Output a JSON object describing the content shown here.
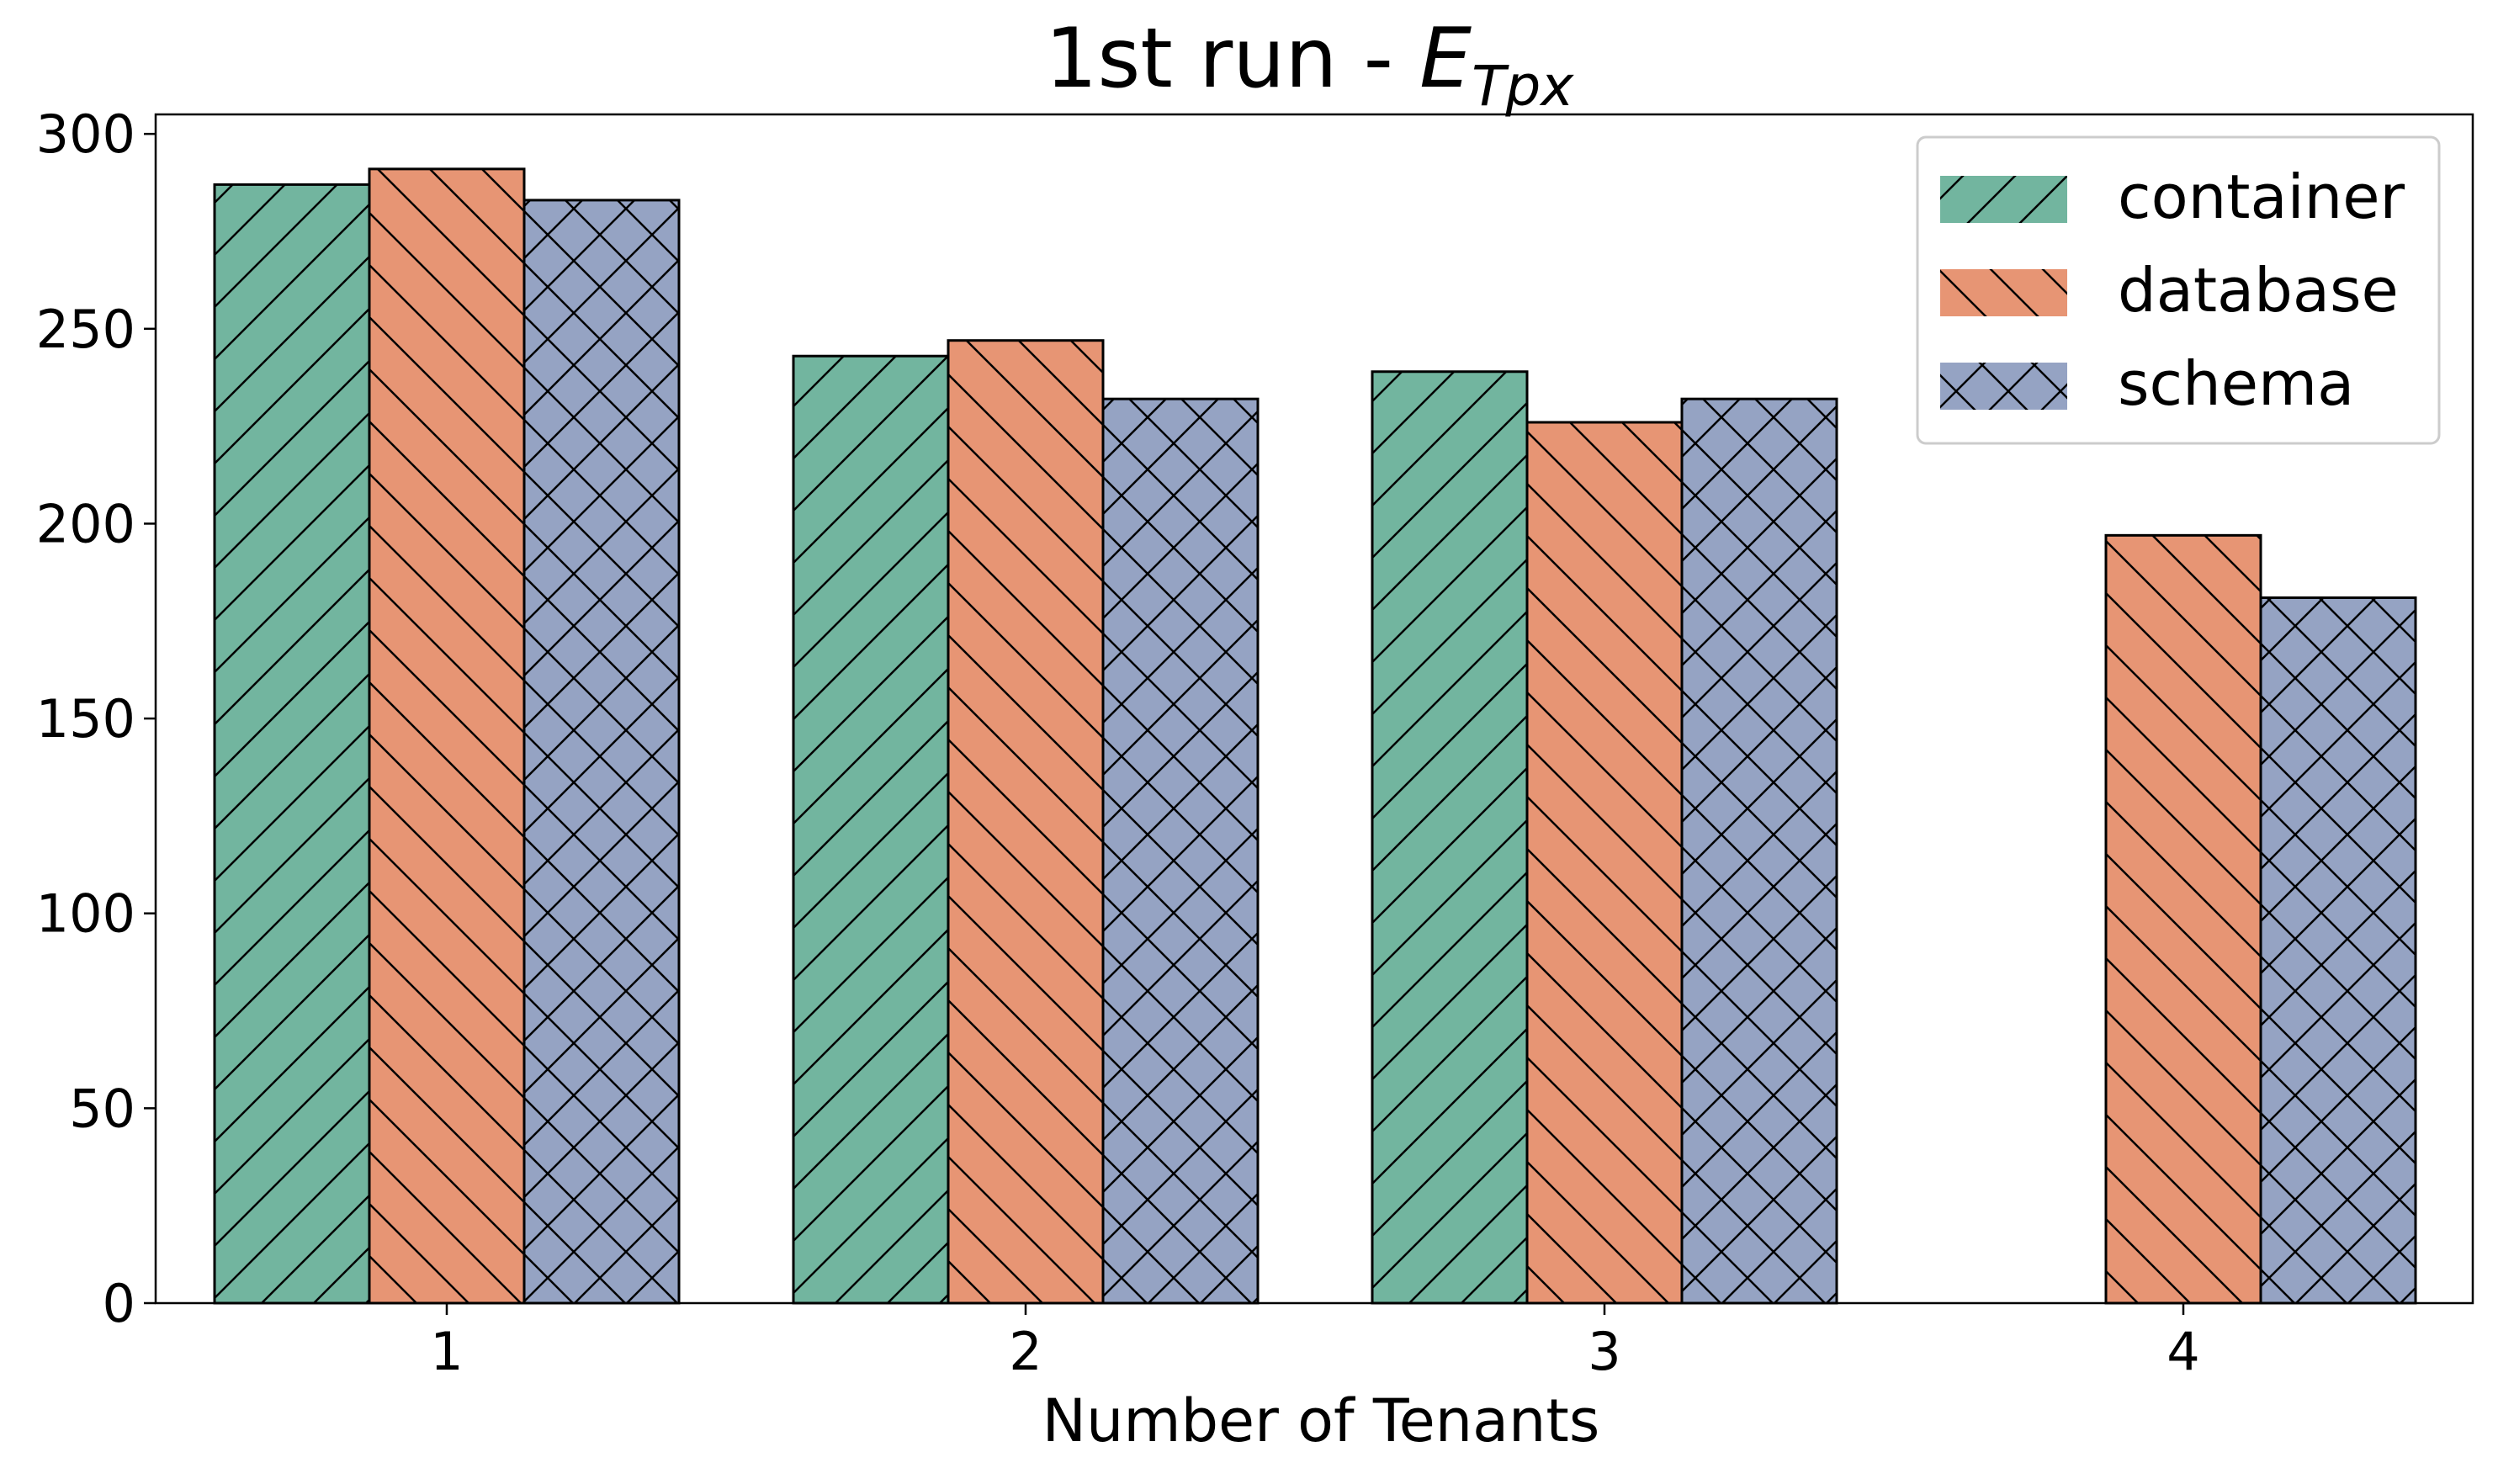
{
  "chart_data": {
    "type": "bar",
    "title": "1st run - ",
    "title_math": "E",
    "title_math_subscript": "Tpx",
    "xlabel": "Number of Tenants",
    "ylabel": "",
    "categories": [
      "1",
      "2",
      "3",
      "4"
    ],
    "yticks": [
      0,
      50,
      100,
      150,
      200,
      250,
      300
    ],
    "ylim": [
      0,
      305
    ],
    "grid": false,
    "legend_position": "top-right",
    "series": [
      {
        "name": "container",
        "values": [
          287,
          243,
          239,
          null
        ],
        "color": "#72b59f",
        "hatch": "forward-diagonal"
      },
      {
        "name": "database",
        "values": [
          291,
          247,
          226,
          197
        ],
        "color": "#e79574",
        "hatch": "back-diagonal"
      },
      {
        "name": "schema",
        "values": [
          283,
          232,
          232,
          181
        ],
        "color": "#95a3c3",
        "hatch": "crosshatch"
      }
    ]
  }
}
